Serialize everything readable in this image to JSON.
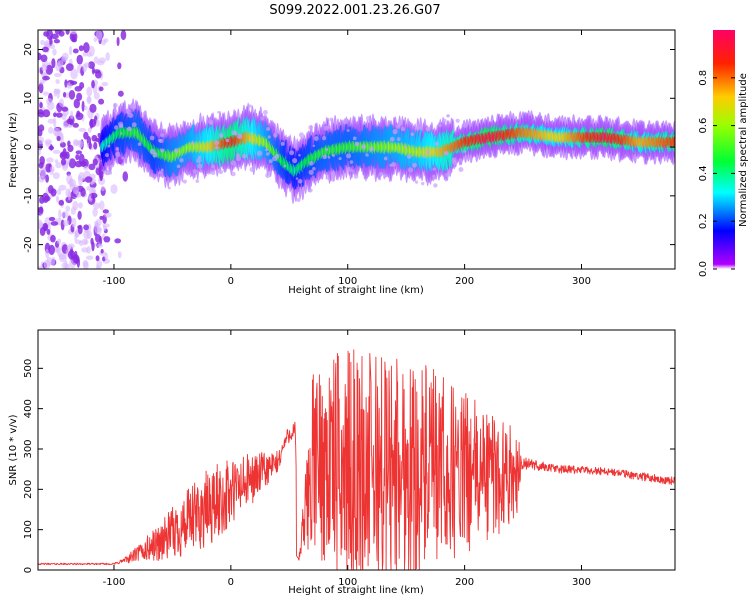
{
  "figure_title": "S099.2022.001.23.26.G07",
  "chart_data": [
    {
      "type": "heatmap",
      "xlabel": "Height of straight line (km)",
      "ylabel": "Frequency (Hz)",
      "xlim": [
        -165,
        380
      ],
      "ylim": [
        -25,
        24
      ],
      "xticks": [
        -100,
        0,
        100,
        200,
        300
      ],
      "yticks": [
        -20,
        -10,
        0,
        10,
        20
      ],
      "colorbar": {
        "label": "Normalized spectral amplitude",
        "range": [
          0.0,
          1.0
        ],
        "ticks": [
          0.0,
          0.2,
          0.4,
          0.6,
          0.8
        ],
        "tick_labels": [
          "0.0",
          "0.2",
          "0.4",
          "0.6",
          "0.8"
        ],
        "colormap": "hsv (purple-blue-cyan-green-yellow-orange-red)"
      },
      "ridge": {
        "description": "frequency of peak spectral amplitude vs height",
        "x": [
          -110,
          -95,
          -80,
          -65,
          -50,
          -35,
          -20,
          0,
          15,
          30,
          45,
          55,
          65,
          80,
          100,
          120,
          140,
          160,
          180,
          200,
          220,
          250,
          280,
          320,
          350,
          380
        ],
        "freq": [
          0,
          3,
          3,
          -1,
          -2,
          0,
          0,
          1,
          2,
          1,
          -3,
          -5,
          -3,
          -1,
          0,
          0,
          0,
          -1,
          -1,
          1,
          2,
          3,
          2,
          2,
          1,
          1
        ],
        "amplitude": [
          0.35,
          0.45,
          0.5,
          0.45,
          0.55,
          0.6,
          0.7,
          0.9,
          0.75,
          0.6,
          0.45,
          0.4,
          0.45,
          0.5,
          0.5,
          0.55,
          0.6,
          0.65,
          0.75,
          0.85,
          0.95,
          0.8,
          0.7,
          0.95,
          0.75,
          0.85
        ]
      },
      "noise_region": {
        "x_range": [
          -165,
          -105
        ],
        "freq_range": [
          -25,
          24
        ]
      }
    },
    {
      "type": "line",
      "xlabel": "Height of straight line (km)",
      "ylabel": "SNR (10 * v/v)",
      "xlim": [
        -165,
        380
      ],
      "ylim": [
        0,
        595
      ],
      "xticks": [
        -100,
        0,
        100,
        200,
        300
      ],
      "yticks": [
        0,
        100,
        200,
        300,
        400,
        500
      ],
      "series": [
        {
          "color": "#ee3333",
          "description": "SNR vs height: low flat baseline, rising ramp, strongly oscillating middle segment, flat plateau at right",
          "envelope_x": [
            -165,
            -100,
            -90,
            -80,
            -60,
            -40,
            -20,
            0,
            20,
            40,
            48,
            55,
            58,
            70,
            90,
            110,
            130,
            150,
            170,
            200,
            230,
            245,
            250,
            280,
            320,
            380
          ],
          "envelope_y": [
            15,
            15,
            25,
            40,
            70,
            110,
            150,
            190,
            230,
            265,
            330,
            350,
            20,
            270,
            260,
            250,
            250,
            250,
            245,
            240,
            235,
            240,
            265,
            250,
            245,
            220
          ],
          "oscillation_amplitude": [
            2,
            2,
            8,
            20,
            50,
            80,
            100,
            90,
            60,
            30,
            20,
            20,
            0,
            220,
            280,
            300,
            300,
            290,
            260,
            200,
            150,
            100,
            15,
            10,
            10,
            10
          ]
        }
      ]
    }
  ]
}
